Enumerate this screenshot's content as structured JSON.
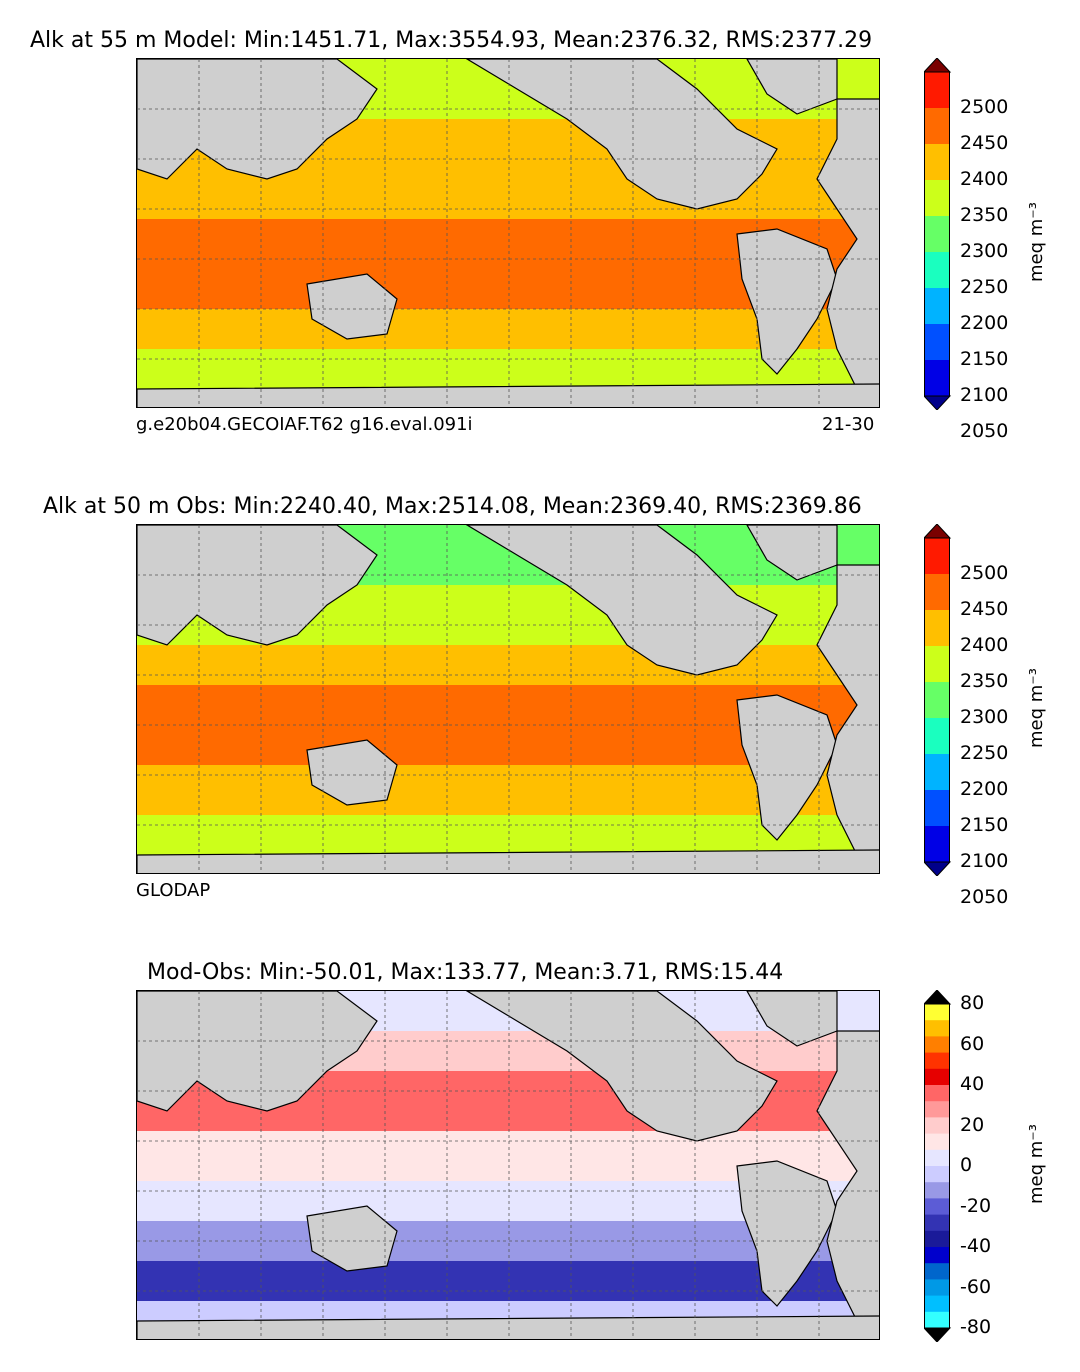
{
  "chart_data": [
    {
      "type": "contour-map",
      "title": "Alk at 55 m Model: Min:1451.71, Max:3554.93, Mean:2376.32, RMS:2377.29",
      "variable": "Alk",
      "depth": "55 m",
      "source": "Model",
      "stats": {
        "min": 1451.71,
        "max": 3554.93,
        "mean": 2376.32,
        "rms": 2377.29
      },
      "caption_left": "g.e20b04.GECOIAF.T62 g16.eval.091i",
      "caption_right": "21-30",
      "colorbar": {
        "unit": "meq m⁻³",
        "levels": [
          2050,
          2100,
          2150,
          2200,
          2250,
          2300,
          2350,
          2400,
          2450,
          2500
        ],
        "tick_labels": [
          "2500",
          "2450",
          "2400",
          "2350",
          "2300",
          "2250",
          "2200",
          "2150",
          "2100",
          "2050"
        ],
        "colors": [
          "#7a0000",
          "#ff1a00",
          "#ff6a00",
          "#ffbf00",
          "#ccff1a",
          "#66ff66",
          "#1affbf",
          "#00b3ff",
          "#0050ff",
          "#0000e6",
          "#00008a"
        ]
      }
    },
    {
      "type": "contour-map",
      "title": "Alk at 50 m Obs: Min:2240.40, Max:2514.08, Mean:2369.40, RMS:2369.86",
      "variable": "Alk",
      "depth": "50 m",
      "source": "Obs",
      "stats": {
        "min": 2240.4,
        "max": 2514.08,
        "mean": 2369.4,
        "rms": 2369.86
      },
      "caption_left": "GLODAP",
      "colorbar": {
        "unit": "meq m⁻³",
        "levels": [
          2050,
          2100,
          2150,
          2200,
          2250,
          2300,
          2350,
          2400,
          2450,
          2500
        ],
        "tick_labels": [
          "2500",
          "2450",
          "2400",
          "2350",
          "2300",
          "2250",
          "2200",
          "2150",
          "2100",
          "2050"
        ],
        "colors": [
          "#7a0000",
          "#ff1a00",
          "#ff6a00",
          "#ffbf00",
          "#ccff1a",
          "#66ff66",
          "#1affbf",
          "#00b3ff",
          "#0050ff",
          "#0000e6",
          "#00008a"
        ]
      }
    },
    {
      "type": "contour-map",
      "title": "Mod-Obs: Min:-50.01, Max:133.77, Mean:3.71, RMS:15.44",
      "source": "Mod-Obs",
      "stats": {
        "min": -50.01,
        "max": 133.77,
        "mean": 3.71,
        "rms": 15.44
      },
      "colorbar": {
        "unit": "meq m⁻³",
        "levels": [
          -80,
          -60,
          -40,
          -20,
          0,
          20,
          40,
          60,
          80
        ],
        "tick_labels": [
          "80",
          "60",
          "40",
          "20",
          "0",
          "-20",
          "-40",
          "-60",
          "-80"
        ],
        "colors": [
          "#000000",
          "#ffff33",
          "#ffbf00",
          "#ff7f00",
          "#ff3300",
          "#e60000",
          "#ff6666",
          "#ff9999",
          "#ffcccc",
          "#ffe6e6",
          "#e6e6ff",
          "#ccccff",
          "#9999e6",
          "#5c5cd6",
          "#3333b3",
          "#1a1a99",
          "#0000cc",
          "#0066cc",
          "#0099e6",
          "#00bfff",
          "#33ffff",
          "#000000"
        ]
      }
    }
  ]
}
